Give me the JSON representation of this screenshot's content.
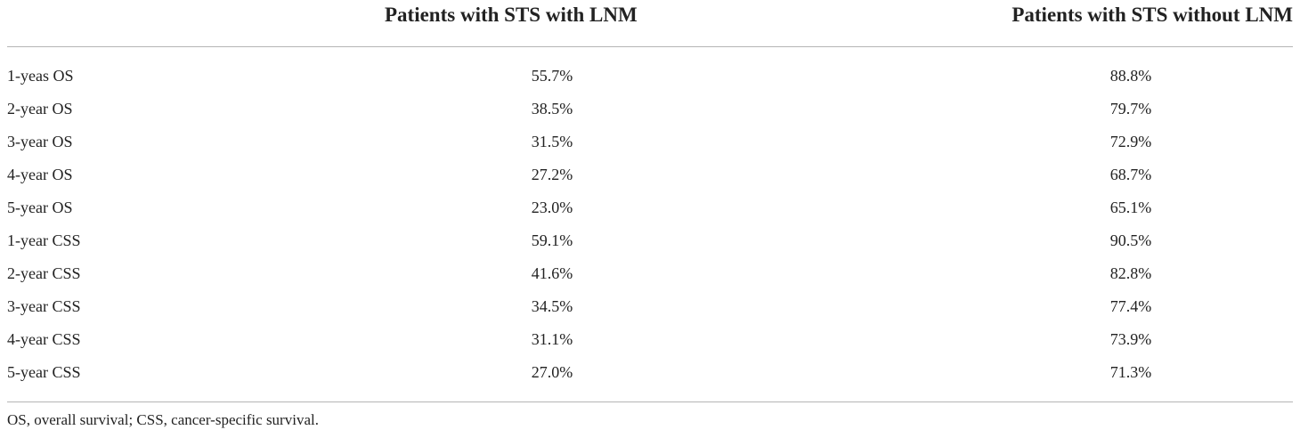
{
  "table": {
    "headers": {
      "label": "",
      "with_lnm": "Patients with STS with LNM",
      "without_lnm": "Patients with STS without LNM"
    },
    "rows": [
      {
        "label": "1-yeas OS",
        "with_lnm": "55.7%",
        "without_lnm": "88.8%"
      },
      {
        "label": "2-year OS",
        "with_lnm": "38.5%",
        "without_lnm": "79.7%"
      },
      {
        "label": "3-year OS",
        "with_lnm": "31.5%",
        "without_lnm": "72.9%"
      },
      {
        "label": "4-year OS",
        "with_lnm": "27.2%",
        "without_lnm": "68.7%"
      },
      {
        "label": "5-year OS",
        "with_lnm": "23.0%",
        "without_lnm": "65.1%"
      },
      {
        "label": "1-year CSS",
        "with_lnm": "59.1%",
        "without_lnm": "90.5%"
      },
      {
        "label": "2-year CSS",
        "with_lnm": "41.6%",
        "without_lnm": "82.8%"
      },
      {
        "label": "3-year CSS",
        "with_lnm": "34.5%",
        "without_lnm": "77.4%"
      },
      {
        "label": "4-year CSS",
        "with_lnm": "31.1%",
        "without_lnm": "73.9%"
      },
      {
        "label": "5-year CSS",
        "with_lnm": "27.0%",
        "without_lnm": "71.3%"
      }
    ],
    "footnote": "OS, overall survival; CSS, cancer-specific survival."
  }
}
